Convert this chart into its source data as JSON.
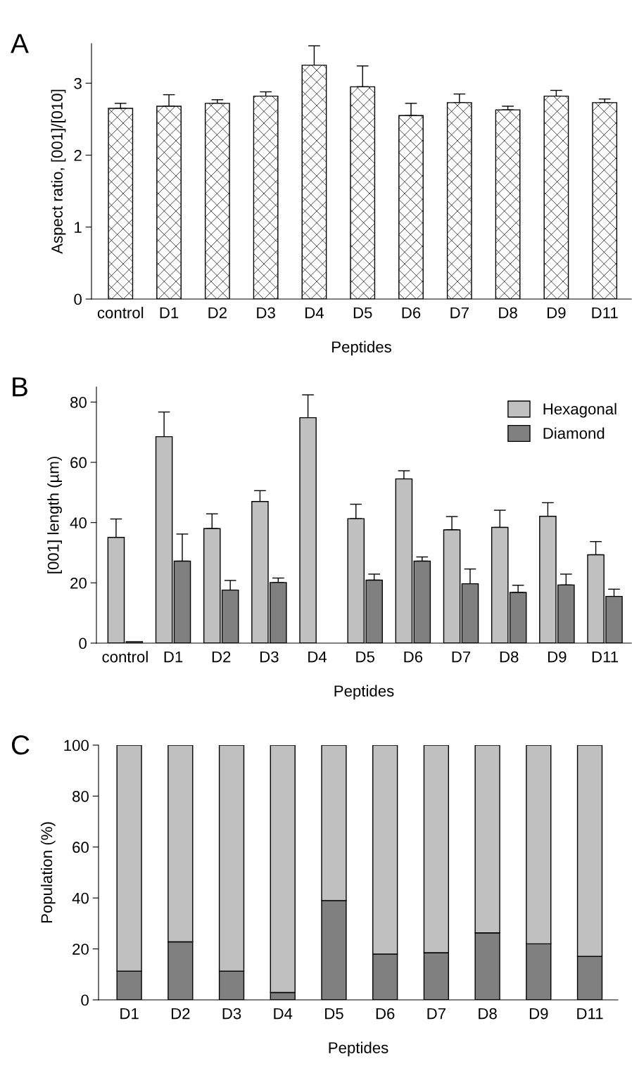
{
  "chart_data": [
    {
      "type": "bar",
      "title": "A",
      "xlabel": "Peptides",
      "ylabel": "Aspect ratio, [001]/[010]",
      "categories": [
        "control",
        "D1",
        "D2",
        "D3",
        "D4",
        "D5",
        "D6",
        "D7",
        "D8",
        "D9",
        "D11"
      ],
      "values": [
        2.65,
        2.68,
        2.72,
        2.82,
        3.25,
        2.95,
        2.55,
        2.73,
        2.63,
        2.82,
        2.73
      ],
      "color": "#ffffff",
      "errors": [
        [
          2.65,
          2.72
        ],
        [
          2.68,
          2.84
        ],
        [
          2.72,
          2.77
        ],
        [
          2.82,
          2.88
        ],
        [
          3.25,
          3.52
        ],
        [
          2.95,
          3.24
        ],
        [
          2.55,
          2.72
        ],
        [
          2.73,
          2.85
        ],
        [
          2.63,
          2.68
        ],
        [
          2.82,
          2.9
        ],
        [
          2.73,
          2.78
        ]
      ],
      "ylim": [
        0,
        3.55
      ],
      "yticks": [
        0,
        1,
        2,
        3
      ],
      "grid": false,
      "legend": false
    },
    {
      "type": "bar",
      "title": "B",
      "xlabel": "Peptides",
      "ylabel": "[001] length (µm)",
      "categories": [
        "control",
        "D1",
        "D2",
        "D3",
        "D4",
        "D5",
        "D6",
        "D7",
        "D8",
        "D9",
        "D11"
      ],
      "series": [
        {
          "name": "Hexagonal",
          "color": "#c0c0c0",
          "values": [
            35.1,
            68.5,
            38,
            47,
            74.8,
            41.3,
            54.5,
            37.6,
            38.4,
            42.1,
            29.3
          ],
          "errors": [
            [
              35.1,
              41.2
            ],
            [
              68.5,
              76.7
            ],
            [
              38,
              42.9
            ],
            [
              47,
              50.6
            ],
            [
              74.8,
              82.4
            ],
            [
              41.3,
              46.1
            ],
            [
              54.5,
              57.2
            ],
            [
              37.6,
              42
            ],
            [
              38.4,
              44.1
            ],
            [
              42.1,
              46.6
            ],
            [
              29.3,
              33.7
            ]
          ]
        },
        {
          "name": "Diamond",
          "color": "#808080",
          "values": [
            0.5,
            27.2,
            17.6,
            20.1,
            null,
            20.9,
            27.2,
            19.7,
            16.8,
            19.3,
            15.5
          ],
          "errors": [
            null,
            [
              27.2,
              36.2
            ],
            [
              17.6,
              20.8
            ],
            [
              20.1,
              21.6
            ],
            null,
            [
              20.9,
              22.9
            ],
            [
              27.2,
              28.6
            ],
            [
              19.7,
              24.6
            ],
            [
              16.8,
              19.2
            ],
            [
              19.3,
              22.9
            ],
            [
              15.5,
              17.9
            ]
          ]
        }
      ],
      "ylim": [
        0,
        85
      ],
      "yticks": [
        0,
        20,
        40,
        60,
        80
      ],
      "grid": false,
      "legend": "top right"
    },
    {
      "type": "bar",
      "title": "C",
      "xlabel": "Peptides",
      "ylabel": "Population (%)",
      "categories": [
        "D1",
        "D2",
        "D3",
        "D4",
        "D5",
        "D6",
        "D7",
        "D8",
        "D9",
        "D11"
      ],
      "stacked": true,
      "series": [
        {
          "color": "#808080",
          "values": [
            11.3,
            22.8,
            11.3,
            2.9,
            39,
            18,
            18.5,
            26.3,
            22,
            17.1
          ]
        },
        {
          "color": "#c0c0c0",
          "values": [
            88.7,
            77.2,
            88.7,
            97.1,
            61,
            82,
            81.5,
            73.7,
            78,
            82.9
          ]
        }
      ],
      "ylim": [
        0,
        100
      ],
      "yticks": [
        0,
        20,
        40,
        60,
        80,
        100
      ],
      "grid": false,
      "legend": false
    }
  ]
}
